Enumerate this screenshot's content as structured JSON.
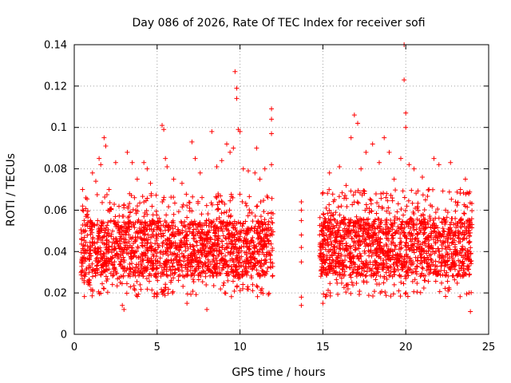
{
  "chart_data": {
    "type": "scatter",
    "title": "Day 086 of 2026, Rate Of TEC Index for receiver sofi",
    "xlabel": "GPS time / hours",
    "ylabel": "ROTI / TECUs",
    "xlim": [
      0,
      25
    ],
    "ylim": [
      0,
      0.14
    ],
    "x_ticks": [
      {
        "value": 0,
        "label": "0"
      },
      {
        "value": 5,
        "label": "5"
      },
      {
        "value": 10,
        "label": "10"
      },
      {
        "value": 15,
        "label": "15"
      },
      {
        "value": 20,
        "label": "20"
      },
      {
        "value": 25,
        "label": "25"
      }
    ],
    "y_ticks": [
      {
        "value": 0,
        "label": "0"
      },
      {
        "value": 0.02,
        "label": "0.02"
      },
      {
        "value": 0.04,
        "label": "0.04"
      },
      {
        "value": 0.06,
        "label": "0.06"
      },
      {
        "value": 0.08,
        "label": "0.08"
      },
      {
        "value": 0.1,
        "label": "0.1"
      },
      {
        "value": 0.12,
        "label": "0.12"
      },
      {
        "value": 0.14,
        "label": "0.14"
      }
    ],
    "grid": true,
    "marker": "+",
    "series": [
      {
        "name": "ROTI",
        "color": "#ff0000",
        "points": [
          [
            0.5,
            0.07
          ],
          [
            0.5,
            0.062
          ],
          [
            0.6,
            0.055
          ],
          [
            0.6,
            0.025
          ],
          [
            0.7,
            0.066
          ],
          [
            1.0,
            0.05
          ],
          [
            1.1,
            0.078
          ],
          [
            1.3,
            0.074
          ],
          [
            1.5,
            0.085
          ],
          [
            1.6,
            0.082
          ],
          [
            1.8,
            0.095
          ],
          [
            1.9,
            0.091
          ],
          [
            2.1,
            0.07
          ],
          [
            2.5,
            0.083
          ],
          [
            2.7,
            0.05
          ],
          [
            2.9,
            0.014
          ],
          [
            3.0,
            0.012
          ],
          [
            3.2,
            0.088
          ],
          [
            3.5,
            0.083
          ],
          [
            3.8,
            0.075
          ],
          [
            4.2,
            0.083
          ],
          [
            4.4,
            0.08
          ],
          [
            4.6,
            0.073
          ],
          [
            5.0,
            0.02
          ],
          [
            5.3,
            0.101
          ],
          [
            5.4,
            0.099
          ],
          [
            5.5,
            0.085
          ],
          [
            5.6,
            0.081
          ],
          [
            6.0,
            0.075
          ],
          [
            6.5,
            0.073
          ],
          [
            6.8,
            0.015
          ],
          [
            7.1,
            0.093
          ],
          [
            7.3,
            0.085
          ],
          [
            7.6,
            0.078
          ],
          [
            8.0,
            0.012
          ],
          [
            8.3,
            0.098
          ],
          [
            8.6,
            0.081
          ],
          [
            8.9,
            0.084
          ],
          [
            9.2,
            0.092
          ],
          [
            9.4,
            0.088
          ],
          [
            9.6,
            0.09
          ],
          [
            9.7,
            0.127
          ],
          [
            9.8,
            0.119
          ],
          [
            9.8,
            0.114
          ],
          [
            9.9,
            0.099
          ],
          [
            10.0,
            0.098
          ],
          [
            10.2,
            0.08
          ],
          [
            10.5,
            0.079
          ],
          [
            10.9,
            0.078
          ],
          [
            11.0,
            0.09
          ],
          [
            11.2,
            0.075
          ],
          [
            11.5,
            0.08
          ],
          [
            11.9,
            0.109
          ],
          [
            11.9,
            0.104
          ],
          [
            11.9,
            0.097
          ],
          [
            11.9,
            0.082
          ],
          [
            13.7,
            0.064
          ],
          [
            13.7,
            0.06
          ],
          [
            13.7,
            0.055
          ],
          [
            13.7,
            0.048
          ],
          [
            13.7,
            0.042
          ],
          [
            13.7,
            0.035
          ],
          [
            13.7,
            0.018
          ],
          [
            13.7,
            0.014
          ],
          [
            14.8,
            0.038
          ],
          [
            14.9,
            0.05
          ],
          [
            15.0,
            0.015
          ],
          [
            15.2,
            0.061
          ],
          [
            15.4,
            0.078
          ],
          [
            15.7,
            0.065
          ],
          [
            16.0,
            0.081
          ],
          [
            16.4,
            0.072
          ],
          [
            16.7,
            0.095
          ],
          [
            16.9,
            0.106
          ],
          [
            17.1,
            0.102
          ],
          [
            17.3,
            0.08
          ],
          [
            17.6,
            0.088
          ],
          [
            18.0,
            0.092
          ],
          [
            18.4,
            0.083
          ],
          [
            18.7,
            0.095
          ],
          [
            19.0,
            0.088
          ],
          [
            19.3,
            0.075
          ],
          [
            19.7,
            0.085
          ],
          [
            19.9,
            0.14
          ],
          [
            19.9,
            0.123
          ],
          [
            20.0,
            0.107
          ],
          [
            20.0,
            0.1
          ],
          [
            20.2,
            0.082
          ],
          [
            20.5,
            0.08
          ],
          [
            21.0,
            0.076
          ],
          [
            21.4,
            0.07
          ],
          [
            21.7,
            0.085
          ],
          [
            22.0,
            0.082
          ],
          [
            22.4,
            0.06
          ],
          [
            22.7,
            0.083
          ],
          [
            23.0,
            0.064
          ],
          [
            23.3,
            0.07
          ],
          [
            23.6,
            0.075
          ],
          [
            23.8,
            0.068
          ],
          [
            23.9,
            0.011
          ]
        ],
        "bands": [
          {
            "x_start": 0.4,
            "x_end": 12.0,
            "y_low": 0.018,
            "y_high": 0.068,
            "core_low": 0.028,
            "core_high": 0.055,
            "count": 1800
          },
          {
            "x_start": 14.8,
            "x_end": 24.0,
            "y_low": 0.018,
            "y_high": 0.07,
            "core_low": 0.028,
            "core_high": 0.056,
            "count": 1500
          }
        ]
      }
    ]
  }
}
